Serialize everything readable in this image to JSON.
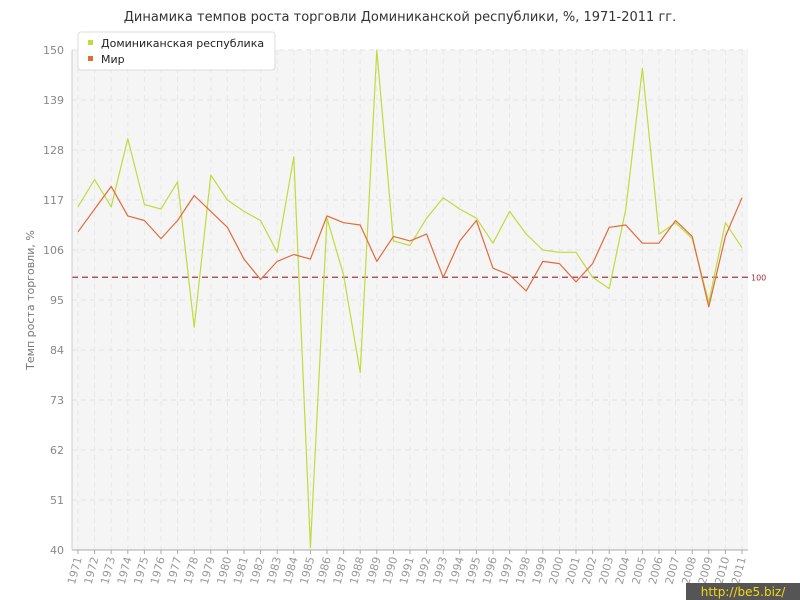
{
  "chart_data": {
    "type": "line",
    "title": "Динамика темпов роста торговли Доминиканской республики, %, 1971-2011 гг.",
    "xlabel": "",
    "ylabel": "Темп роста торговли, %",
    "ylim": [
      40,
      150
    ],
    "yticks": [
      "40",
      "51",
      "62",
      "73",
      "84",
      "95",
      "106",
      "117",
      "128",
      "139",
      "150"
    ],
    "grid": true,
    "legend_position": "top-left",
    "reference_line": {
      "value": 100,
      "label": "100",
      "color": "#a03a44"
    },
    "x": [
      "1971",
      "1972",
      "1973",
      "1974",
      "1975",
      "1976",
      "1977",
      "1978",
      "1979",
      "1980",
      "1981",
      "1982",
      "1983",
      "1984",
      "1985",
      "1986",
      "1987",
      "1988",
      "1989",
      "1990",
      "1991",
      "1992",
      "1993",
      "1994",
      "1995",
      "1996",
      "1997",
      "1998",
      "1999",
      "2000",
      "2001",
      "2002",
      "2003",
      "2004",
      "2005",
      "2006",
      "2007",
      "2008",
      "2009",
      "2010",
      "2011"
    ],
    "series": [
      {
        "name": "Доминиканская республика",
        "color": "#bfdc3c",
        "values": [
          115.5,
          121.5,
          115.5,
          130.5,
          116.0,
          115.0,
          121.0,
          89.0,
          122.5,
          117.0,
          114.5,
          112.5,
          105.5,
          126.5,
          40.5,
          113.0,
          100.5,
          79.0,
          150.0,
          108.0,
          107.0,
          113.0,
          117.5,
          115.0,
          113.0,
          107.5,
          114.5,
          109.5,
          106.0,
          105.5,
          105.5,
          100.0,
          97.5,
          115.0,
          146.0,
          109.5,
          112.0,
          108.5,
          94.5,
          112.0,
          106.5
        ]
      },
      {
        "name": "Мир",
        "color": "#e06c3c",
        "values": [
          110.0,
          115.0,
          120.0,
          113.5,
          112.5,
          108.5,
          112.5,
          118.0,
          114.5,
          111.0,
          104.0,
          99.5,
          103.5,
          105.0,
          104.0,
          113.5,
          112.0,
          111.5,
          103.5,
          109.0,
          108.0,
          109.5,
          100.0,
          108.0,
          112.5,
          102.0,
          100.5,
          97.0,
          103.5,
          103.0,
          99.0,
          103.0,
          111.0,
          111.5,
          107.5,
          107.5,
          112.5,
          109.0,
          93.5,
          109.0,
          117.5
        ]
      }
    ]
  },
  "watermark": {
    "text": "http://be5.biz/"
  }
}
